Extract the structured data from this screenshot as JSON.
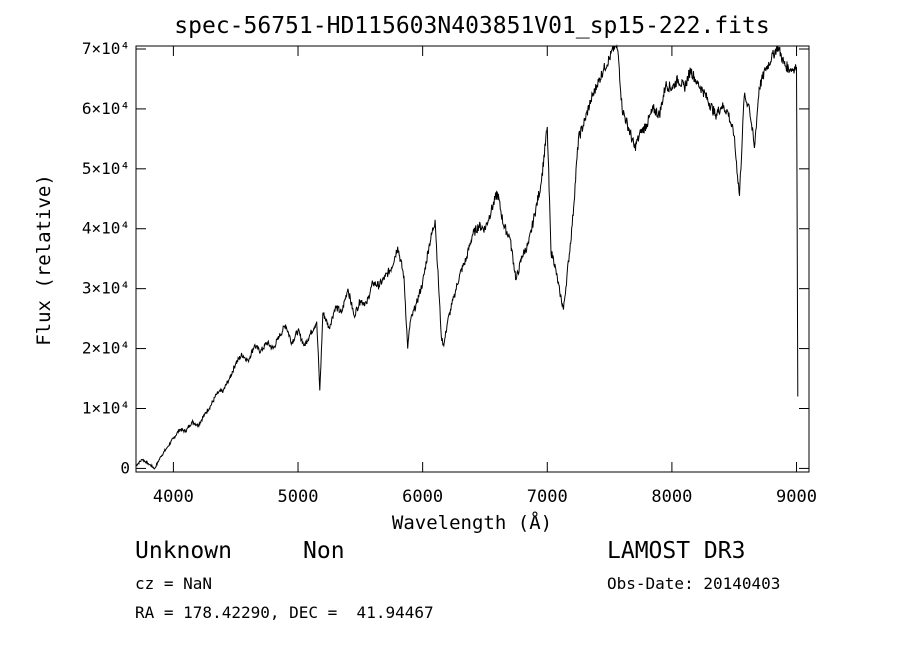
{
  "chart_data": {
    "type": "line",
    "title": "spec-56751-HD115603N403851V01_sp15-222.fits",
    "xlabel": "Wavelength (Å)",
    "ylabel": "Flux (relative)",
    "xlim": [
      3700,
      9100
    ],
    "ylim": [
      -600,
      70500
    ],
    "x_ticks": [
      4000,
      5000,
      6000,
      7000,
      8000,
      9000
    ],
    "y_ticks": [
      0,
      10000,
      20000,
      30000,
      40000,
      50000,
      60000,
      70000
    ],
    "y_tick_labels": [
      "0",
      "1×10⁴",
      "2×10⁴",
      "3×10⁴",
      "4×10⁴",
      "5×10⁴",
      "6×10⁴",
      "7×10⁴"
    ],
    "series": [
      {
        "name": "flux",
        "x": [
          3700,
          3750,
          3800,
          3850,
          3900,
          3950,
          4000,
          4050,
          4100,
          4150,
          4200,
          4250,
          4300,
          4350,
          4400,
          4450,
          4500,
          4550,
          4600,
          4650,
          4700,
          4750,
          4800,
          4850,
          4900,
          4950,
          5000,
          5050,
          5100,
          5150,
          5175,
          5200,
          5250,
          5300,
          5350,
          5400,
          5450,
          5500,
          5550,
          5600,
          5650,
          5700,
          5750,
          5800,
          5850,
          5880,
          5900,
          5950,
          6000,
          6050,
          6100,
          6150,
          6170,
          6200,
          6250,
          6300,
          6350,
          6400,
          6450,
          6500,
          6550,
          6600,
          6650,
          6700,
          6750,
          6800,
          6850,
          6900,
          6950,
          7000,
          7030,
          7050,
          7100,
          7130,
          7200,
          7250,
          7300,
          7350,
          7400,
          7450,
          7500,
          7550,
          7570,
          7600,
          7650,
          7700,
          7750,
          7800,
          7850,
          7900,
          7950,
          8000,
          8050,
          8100,
          8150,
          8200,
          8250,
          8300,
          8350,
          8400,
          8450,
          8498,
          8542,
          8580,
          8620,
          8662,
          8700,
          8750,
          8800,
          8850,
          8900,
          8950,
          9000,
          9010
        ],
        "y": [
          500,
          1500,
          800,
          0,
          2000,
          3500,
          5000,
          6500,
          6200,
          7800,
          7200,
          9000,
          10500,
          12500,
          13000,
          15000,
          17500,
          19000,
          18000,
          20500,
          19500,
          21000,
          20000,
          22000,
          24000,
          21000,
          23000,
          20500,
          22500,
          24500,
          13000,
          26000,
          23500,
          27000,
          26000,
          30000,
          25500,
          28000,
          27500,
          31000,
          30500,
          32000,
          33500,
          37000,
          32000,
          20000,
          24500,
          27500,
          31000,
          37000,
          41500,
          22000,
          20500,
          24500,
          28500,
          32500,
          35000,
          39000,
          40500,
          40000,
          43000,
          46000,
          40500,
          38500,
          31500,
          35500,
          37500,
          42500,
          47500,
          57000,
          36000,
          35000,
          29500,
          26500,
          40500,
          55000,
          58000,
          61500,
          64000,
          66500,
          68500,
          71000,
          69000,
          60000,
          57000,
          53500,
          56000,
          57500,
          60000,
          59000,
          64000,
          63500,
          65000,
          63500,
          66500,
          64500,
          63000,
          61000,
          59000,
          60500,
          59500,
          55500,
          45500,
          62000,
          60500,
          53500,
          63500,
          66500,
          68500,
          70500,
          67500,
          66500,
          67000,
          12000
        ]
      }
    ]
  },
  "info": {
    "object_name": "Unknown",
    "object_type": "Non",
    "cz": "cz = NaN",
    "coords": "RA = 178.42290, DEC =  41.94467",
    "survey": "LAMOST DR3",
    "obs_date": "Obs-Date: 20140403"
  }
}
